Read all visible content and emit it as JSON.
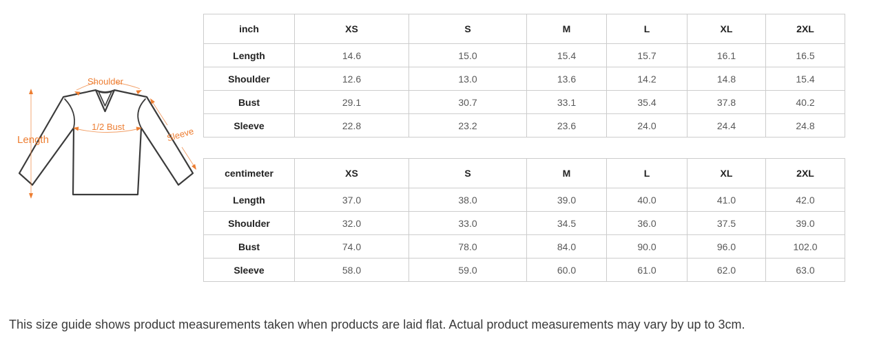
{
  "diagram": {
    "labels": {
      "shoulder": "Shoulder",
      "length": "Length",
      "half_bust": "1/2 Bust",
      "sleeve": "Sleeve"
    },
    "accent_color": "#ED7D31",
    "outline_color": "#3B3B3B"
  },
  "table_border_color": "#CCCCCC",
  "size_tables": [
    {
      "unit_label": "inch",
      "columns": [
        "XS",
        "S",
        "M",
        "L",
        "XL",
        "2XL"
      ],
      "rows": [
        {
          "label": "Length",
          "values": [
            "14.6",
            "15.0",
            "15.4",
            "15.7",
            "16.1",
            "16.5"
          ]
        },
        {
          "label": "Shoulder",
          "values": [
            "12.6",
            "13.0",
            "13.6",
            "14.2",
            "14.8",
            "15.4"
          ]
        },
        {
          "label": "Bust",
          "values": [
            "29.1",
            "30.7",
            "33.1",
            "35.4",
            "37.8",
            "40.2"
          ]
        },
        {
          "label": "Sleeve",
          "values": [
            "22.8",
            "23.2",
            "23.6",
            "24.0",
            "24.4",
            "24.8"
          ]
        }
      ]
    },
    {
      "unit_label": "centimeter",
      "columns": [
        "XS",
        "S",
        "M",
        "L",
        "XL",
        "2XL"
      ],
      "rows": [
        {
          "label": "Length",
          "values": [
            "37.0",
            "38.0",
            "39.0",
            "40.0",
            "41.0",
            "42.0"
          ]
        },
        {
          "label": "Shoulder",
          "values": [
            "32.0",
            "33.0",
            "34.5",
            "36.0",
            "37.5",
            "39.0"
          ]
        },
        {
          "label": "Bust",
          "values": [
            "74.0",
            "78.0",
            "84.0",
            "90.0",
            "96.0",
            "102.0"
          ]
        },
        {
          "label": "Sleeve",
          "values": [
            "58.0",
            "59.0",
            "60.0",
            "61.0",
            "62.0",
            "63.0"
          ]
        }
      ]
    }
  ],
  "note": {
    "text": "This size guide shows product measurements taken when products are laid flat. Actual product measurements may vary by up to 3cm."
  }
}
